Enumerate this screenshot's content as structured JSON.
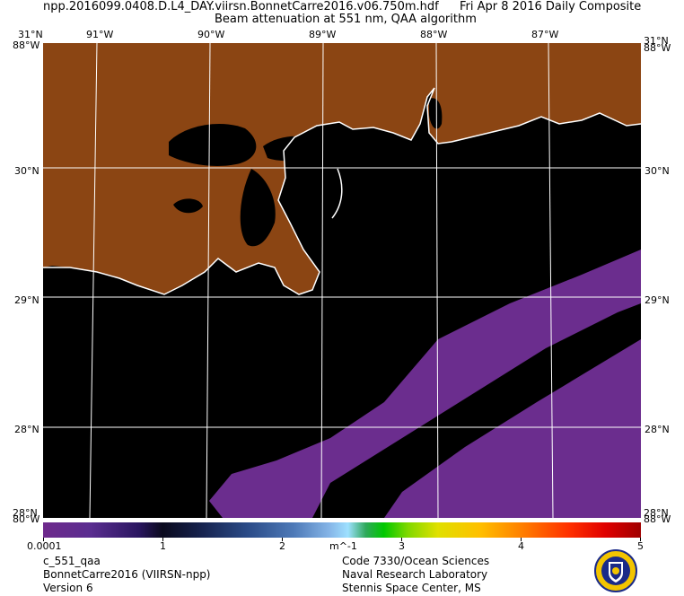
{
  "header": {
    "file_name": "npp.2016099.0408.D.L4_DAY.viirsn.BonnetCarre2016.v06.750m.hdf",
    "date_label": "Fri Apr  8 2016 Daily Composite",
    "product_title": "Beam attenuation at 551 nm, QAA algorithm"
  },
  "map": {
    "lon_labels": [
      "91°W",
      "90°W",
      "89°W",
      "88°W",
      "87°W"
    ],
    "lat_labels": [
      "30°N",
      "29°N",
      "28°N"
    ],
    "corner_top": "31°N",
    "corner_top_right": "31°N",
    "edge_top": "88°W",
    "edge_bottom": "80°W",
    "edge_bottom_right": "88°W",
    "edge_bottom_left_overlap": "28°N",
    "colors": {
      "land": "#8b4513",
      "water_no_data": "#000000",
      "coastline": "#ffffff",
      "grid": "#ffffff",
      "low_value": "#6b2d8e"
    }
  },
  "colorbar": {
    "labels": [
      "0.0001",
      "1",
      "2",
      "3",
      "4",
      "5"
    ],
    "unit": "m^-1",
    "range": [
      0.0001,
      5
    ]
  },
  "footer": {
    "left": [
      "c_551_qaa",
      "BonnetCarre2016 (VIIRSN-npp)",
      "Version 6"
    ],
    "right": [
      "Code 7330/Ocean Sciences",
      "Naval Research Laboratory",
      "Stennis Space Center, MS"
    ],
    "seal_icon": "naval-research-laboratory-seal"
  }
}
